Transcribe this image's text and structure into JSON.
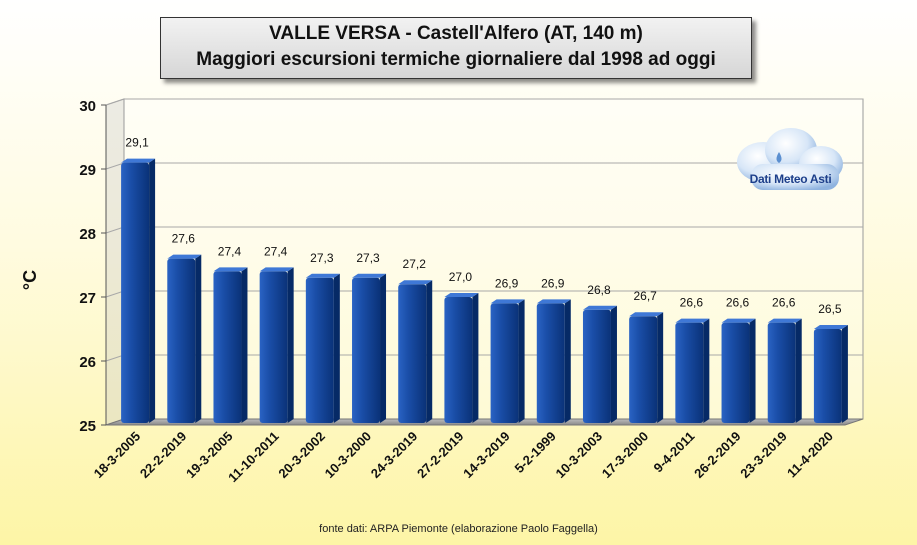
{
  "title": {
    "line1": "VALLE VERSA - Castell'Alfero (AT, 140 m)",
    "line2": "Maggiori escursioni termiche giornaliere dal 1998 ad oggi"
  },
  "source": "fonte dati: ARPA Piemonte (elaborazione Paolo Faggella)",
  "logo": {
    "text": "Dati Meteo Asti",
    "icon": "cloud-raindrop-icon"
  },
  "colors": {
    "bar": "#0d3c8c",
    "bar_light": "#2a63c4",
    "bar_dark": "#062a66"
  },
  "chart_data": {
    "type": "bar",
    "title": "VALLE VERSA - Castell'Alfero (AT, 140 m) / Maggiori escursioni termiche giornaliere dal 1998 ad oggi",
    "xlabel": "",
    "ylabel": "°C",
    "ylim": [
      25,
      30
    ],
    "yticks": [
      25,
      26,
      27,
      28,
      29,
      30
    ],
    "grid": true,
    "categories": [
      "18-3-2005",
      "22-2-2019",
      "19-3-2005",
      "11-10-2011",
      "20-3-2002",
      "10-3-2000",
      "24-3-2019",
      "27-2-2019",
      "14-3-2019",
      "5-2-1999",
      "10-3-2003",
      "17-3-2000",
      "9-4-2011",
      "26-2-2019",
      "23-3-2019",
      "11-4-2020"
    ],
    "values": [
      29.1,
      27.6,
      27.4,
      27.4,
      27.3,
      27.3,
      27.2,
      27.0,
      26.9,
      26.9,
      26.8,
      26.7,
      26.6,
      26.6,
      26.6,
      26.5
    ],
    "data_labels": [
      "29,1",
      "27,6",
      "27,4",
      "27,4",
      "27,3",
      "27,3",
      "27,2",
      "27,0",
      "26,9",
      "26,9",
      "26,8",
      "26,7",
      "26,6",
      "26,6",
      "26,6",
      "26,5"
    ]
  }
}
